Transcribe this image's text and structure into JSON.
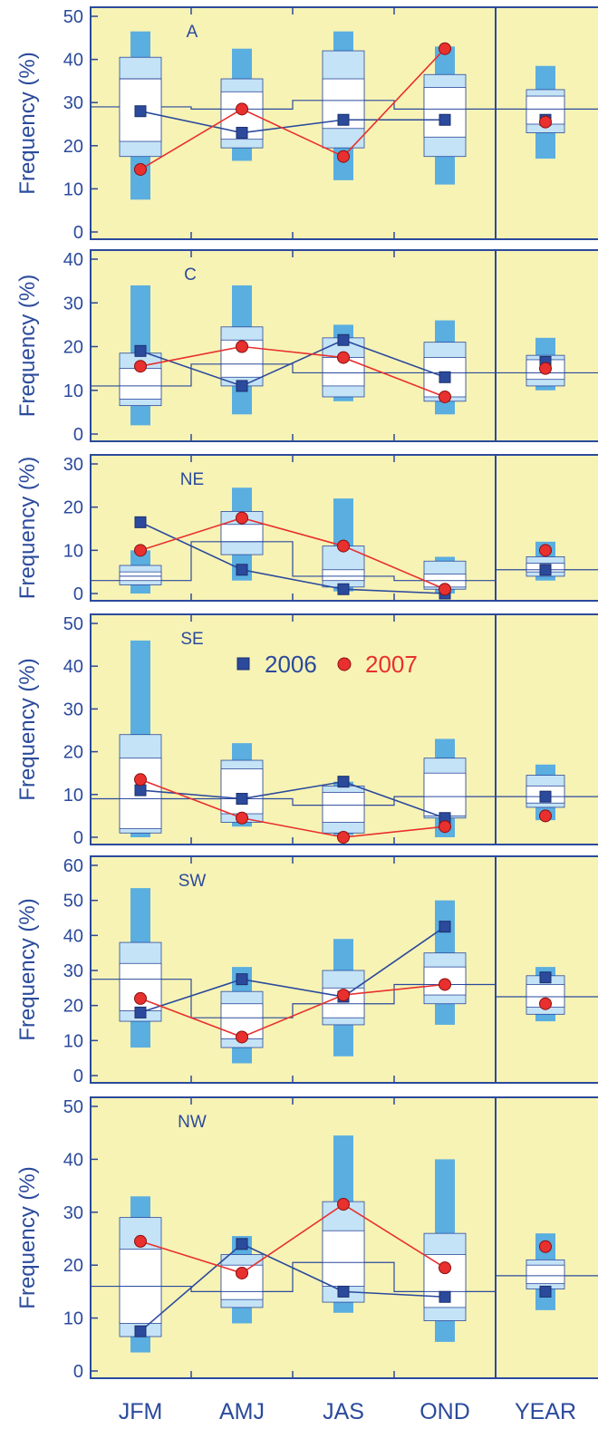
{
  "colors": {
    "background": "#f7f3b5",
    "axis": "#2b4a9c",
    "outer_box": "#5aaee0",
    "inner_box": "#c4e3f6",
    "median_box": "#ffffff",
    "series_2006": "#2b4a9c",
    "series_2007": "#e8302e",
    "marker_2007_fill": "#e8302e"
  },
  "chart_data": {
    "type": "box",
    "ylabel": "Frequency (%)",
    "categories": [
      "JFM",
      "AMJ",
      "JAS",
      "OND",
      "YEAR"
    ],
    "legend": {
      "placement": "top-center of panel SE",
      "entries": [
        {
          "name": "2006",
          "marker": "square",
          "color": "#2b4a9c"
        },
        {
          "name": "2007",
          "marker": "circle",
          "color": "#e8302e"
        }
      ]
    },
    "panels": [
      {
        "label": "A",
        "ylim": [
          0,
          50
        ],
        "yticks": [
          "0",
          "10",
          "20",
          "30",
          "40",
          "50"
        ],
        "climatology": [
          29,
          28.5,
          30.5,
          28.5,
          28.5
        ],
        "boxes": [
          {
            "wmin": 7.5,
            "bmin": 17.5,
            "qlow": 21,
            "med": 35.5,
            "qhigh": 35.5,
            "bmax": 40.5,
            "wmax": 46.5
          },
          {
            "wmin": 16.5,
            "bmin": 19.5,
            "qlow": 21.5,
            "med": 28.5,
            "qhigh": 32.5,
            "bmax": 35.5,
            "wmax": 42.5
          },
          {
            "wmin": 12,
            "bmin": 19.5,
            "qlow": 24,
            "med": 30.5,
            "qhigh": 35.5,
            "bmax": 42,
            "wmax": 46.5
          },
          {
            "wmin": 11,
            "bmin": 17.5,
            "qlow": 22,
            "med": 28.5,
            "qhigh": 33.5,
            "bmax": 36.5,
            "wmax": 43
          },
          {
            "wmin": 17,
            "bmin": 23,
            "qlow": 25,
            "med": 28.5,
            "qhigh": 31.5,
            "bmax": 33,
            "wmax": 38.5
          }
        ],
        "series": [
          {
            "name": "2006",
            "values": [
              28,
              23,
              26,
              26,
              null
            ],
            "year_value": 26
          },
          {
            "name": "2007",
            "values": [
              14.5,
              28.5,
              17.5,
              42.5,
              null
            ],
            "year_value": 25.5
          }
        ]
      },
      {
        "label": "C",
        "ylim": [
          0,
          40
        ],
        "yticks": [
          "0",
          "10",
          "20",
          "30",
          "40"
        ],
        "climatology": [
          11,
          16,
          14,
          14,
          14
        ],
        "boxes": [
          {
            "wmin": 2,
            "bmin": 6.5,
            "qlow": 8,
            "med": 11,
            "qhigh": 15,
            "bmax": 18.5,
            "wmax": 34
          },
          {
            "wmin": 4.5,
            "bmin": 11,
            "qlow": 13,
            "med": 16,
            "qhigh": 21.5,
            "bmax": 24.5,
            "wmax": 34
          },
          {
            "wmin": 7.5,
            "bmin": 8.5,
            "qlow": 11,
            "med": 14,
            "qhigh": 17.5,
            "bmax": 22,
            "wmax": 25
          },
          {
            "wmin": 4.5,
            "bmin": 7.5,
            "qlow": 8.5,
            "med": 14,
            "qhigh": 17.5,
            "bmax": 21,
            "wmax": 26
          },
          {
            "wmin": 10,
            "bmin": 11,
            "qlow": 12.5,
            "med": 14,
            "qhigh": 17,
            "bmax": 18,
            "wmax": 22
          }
        ],
        "series": [
          {
            "name": "2006",
            "values": [
              19,
              11,
              21.5,
              13,
              null
            ],
            "year_value": 16.5
          },
          {
            "name": "2007",
            "values": [
              15.5,
              20,
              17.5,
              8.5,
              null
            ],
            "year_value": 15
          }
        ]
      },
      {
        "label": "NE",
        "ylim": [
          0,
          30
        ],
        "yticks": [
          "0",
          "10",
          "20",
          "30"
        ],
        "climatology": [
          3,
          12,
          4,
          3,
          5.5
        ],
        "boxes": [
          {
            "wmin": 0,
            "bmin": 2,
            "qlow": 3,
            "med": 4,
            "qhigh": 5,
            "bmax": 6.5,
            "wmax": 10
          },
          {
            "wmin": 3,
            "bmin": 9,
            "qlow": 12,
            "med": 12,
            "qhigh": 16,
            "bmax": 19,
            "wmax": 24.5
          },
          {
            "wmin": 0.5,
            "bmin": 1.5,
            "qlow": 3,
            "med": 4,
            "qhigh": 5.5,
            "bmax": 11,
            "wmax": 22
          },
          {
            "wmin": 0,
            "bmin": 1,
            "qlow": 1.5,
            "med": 3,
            "qhigh": 4.5,
            "bmax": 7.5,
            "wmax": 8.5
          },
          {
            "wmin": 3,
            "bmin": 4,
            "qlow": 5,
            "med": 5.5,
            "qhigh": 7,
            "bmax": 8.5,
            "wmax": 12
          }
        ],
        "series": [
          {
            "name": "2006",
            "values": [
              16.5,
              5.5,
              1,
              0,
              null
            ],
            "year_value": 5.5
          },
          {
            "name": "2007",
            "values": [
              10,
              17.5,
              11,
              1,
              null
            ],
            "year_value": 10
          }
        ]
      },
      {
        "label": "SE",
        "ylim": [
          0,
          50
        ],
        "yticks": [
          "0",
          "10",
          "20",
          "30",
          "40",
          "50"
        ],
        "climatology": [
          9,
          9,
          7.5,
          9.5,
          9.5
        ],
        "boxes": [
          {
            "wmin": 0,
            "bmin": 1,
            "qlow": 2,
            "med": 9,
            "qhigh": 18.5,
            "bmax": 24,
            "wmax": 46
          },
          {
            "wmin": 2.5,
            "bmin": 3.5,
            "qlow": 5.5,
            "med": 9,
            "qhigh": 16,
            "bmax": 18,
            "wmax": 22
          },
          {
            "wmin": 0.5,
            "bmin": 1,
            "qlow": 3.5,
            "med": 7.5,
            "qhigh": 10.5,
            "bmax": 12,
            "wmax": 13
          },
          {
            "wmin": 0,
            "bmin": 4.5,
            "qlow": 5,
            "med": 9.5,
            "qhigh": 15,
            "bmax": 18.5,
            "wmax": 23
          },
          {
            "wmin": 4,
            "bmin": 7,
            "qlow": 8,
            "med": 9.5,
            "qhigh": 12,
            "bmax": 14.5,
            "wmax": 17
          }
        ],
        "series": [
          {
            "name": "2006",
            "values": [
              11,
              9,
              13,
              4.5,
              null
            ],
            "year_value": 9.5
          },
          {
            "name": "2007",
            "values": [
              13.5,
              4.5,
              0,
              2.5,
              null
            ],
            "year_value": 5
          }
        ]
      },
      {
        "label": "SW",
        "ylim": [
          0,
          60
        ],
        "yticks": [
          "0",
          "10",
          "20",
          "30",
          "40",
          "50",
          "60"
        ],
        "climatology": [
          27.5,
          16.5,
          20.5,
          26,
          22.5
        ],
        "boxes": [
          {
            "wmin": 8,
            "bmin": 15.5,
            "qlow": 18.5,
            "med": 27.5,
            "qhigh": 32,
            "bmax": 38,
            "wmax": 53.5
          },
          {
            "wmin": 3.5,
            "bmin": 8,
            "qlow": 10.5,
            "med": 16.5,
            "qhigh": 20.5,
            "bmax": 24,
            "wmax": 31
          },
          {
            "wmin": 5.5,
            "bmin": 14.5,
            "qlow": 16.5,
            "med": 20.5,
            "qhigh": 25,
            "bmax": 30,
            "wmax": 39
          },
          {
            "wmin": 14.5,
            "bmin": 20.5,
            "qlow": 23,
            "med": 26,
            "qhigh": 31,
            "bmax": 35,
            "wmax": 50
          },
          {
            "wmin": 15.5,
            "bmin": 17.5,
            "qlow": 19.5,
            "med": 22.5,
            "qhigh": 26,
            "bmax": 28.5,
            "wmax": 31
          }
        ],
        "series": [
          {
            "name": "2006",
            "values": [
              18,
              27.5,
              22.5,
              42.5,
              null
            ],
            "year_value": 28
          },
          {
            "name": "2007",
            "values": [
              22,
              11,
              23,
              26,
              null
            ],
            "year_value": 20.5
          }
        ]
      },
      {
        "label": "NW",
        "ylim": [
          0,
          50
        ],
        "yticks": [
          "0",
          "10",
          "20",
          "30",
          "40",
          "50"
        ],
        "climatology": [
          16,
          15,
          20.5,
          15,
          18
        ],
        "boxes": [
          {
            "wmin": 3.5,
            "bmin": 6.5,
            "qlow": 9,
            "med": 16,
            "qhigh": 23,
            "bmax": 29,
            "wmax": 33
          },
          {
            "wmin": 9,
            "bmin": 12,
            "qlow": 13.5,
            "med": 15,
            "qhigh": 20,
            "bmax": 22,
            "wmax": 25.5
          },
          {
            "wmin": 11,
            "bmin": 13,
            "qlow": 16,
            "med": 20.5,
            "qhigh": 26.5,
            "bmax": 32,
            "wmax": 44.5
          },
          {
            "wmin": 5.5,
            "bmin": 9.5,
            "qlow": 12,
            "med": 15,
            "qhigh": 22,
            "bmax": 26,
            "wmax": 40
          },
          {
            "wmin": 11.5,
            "bmin": 15.5,
            "qlow": 16.5,
            "med": 18,
            "qhigh": 20,
            "bmax": 21,
            "wmax": 26
          }
        ],
        "series": [
          {
            "name": "2006",
            "values": [
              7.5,
              24,
              15,
              14,
              null
            ],
            "year_value": 15
          },
          {
            "name": "2007",
            "values": [
              24.5,
              18.5,
              31.5,
              19.5,
              null
            ],
            "year_value": 23.5
          }
        ]
      }
    ]
  }
}
